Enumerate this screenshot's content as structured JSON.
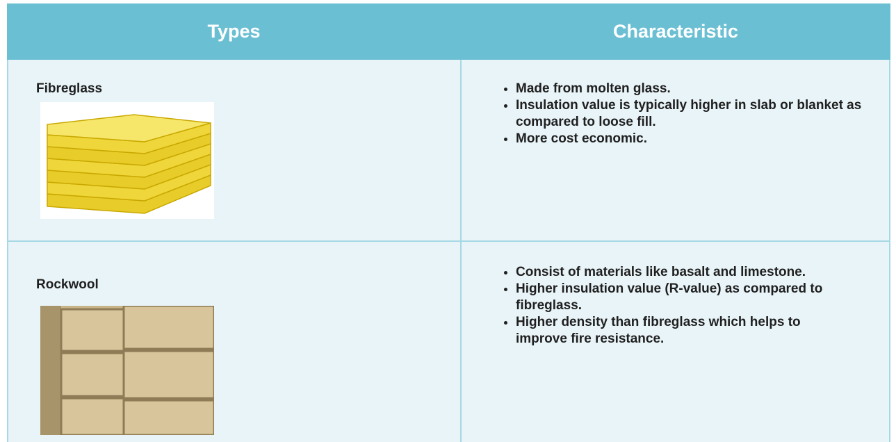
{
  "header": {
    "columns": [
      "Types",
      "Characteristic"
    ]
  },
  "table": {
    "rows": [
      {
        "type": "Fibreglass",
        "characteristics": [
          "Made from molten glass.",
          "Insulation value is typically higher in slab or blanket as compared to loose fill.",
          "More cost economic."
        ]
      },
      {
        "type": "Rockwool",
        "characteristics": [
          "Consist of materials like basalt and limestone.",
          "Higher insulation value (R-value) as compared to fibreglass.",
          "Higher density than fibreglass which helps to improve fire resistance."
        ]
      }
    ]
  }
}
